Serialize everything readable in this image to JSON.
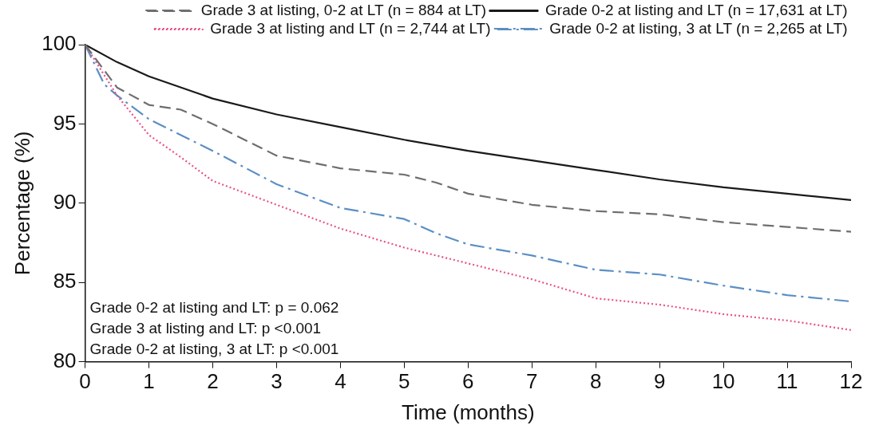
{
  "chart_data": {
    "type": "line",
    "xlabel": "Time (months)",
    "ylabel": "Percentage (%)",
    "xlim": [
      0,
      12
    ],
    "xticks": [
      0,
      1,
      2,
      3,
      4,
      5,
      6,
      7,
      8,
      9,
      10,
      11,
      12
    ],
    "ylim": [
      80,
      100
    ],
    "yticks": [
      80,
      85,
      90,
      95,
      100
    ],
    "grid": false,
    "legend": "top right",
    "marker": "none",
    "annotations": [
      "Grade 0-2 at listing and LT: p = 0.062",
      "Grade 3 at listing and LT: p <0.001",
      "Grade 0-2 at listing, 3 at LT: p <0.001"
    ],
    "series": [
      {
        "name": "Grade 3 at listing, 0-2 at LT (n = 884 at LT)",
        "color": "#6e6e6e",
        "line_style": "dashed",
        "x": [
          0,
          0.5,
          1,
          1.5,
          2,
          3,
          4,
          5,
          5.5,
          6,
          7,
          8,
          9,
          10,
          11,
          12
        ],
        "values": [
          100,
          97.3,
          96.2,
          95.9,
          95.0,
          93.0,
          92.2,
          91.8,
          91.3,
          90.6,
          89.9,
          89.5,
          89.3,
          88.8,
          88.5,
          88.2
        ]
      },
      {
        "name": "Grade 0-2 at listing and LT (n = 17,631 at LT)",
        "color": "#1a1a1a",
        "line_style": "solid",
        "x": [
          0,
          0.5,
          1,
          2,
          3,
          4,
          5,
          6,
          7,
          8,
          9,
          10,
          11,
          12
        ],
        "values": [
          100,
          98.9,
          98.0,
          96.6,
          95.6,
          94.8,
          94.0,
          93.3,
          92.7,
          92.1,
          91.5,
          91.0,
          90.6,
          90.2
        ]
      },
      {
        "name": "Grade 3 at listing and LT (n = 2,744 at LT)",
        "color": "#e8508a",
        "line_style": "dotted",
        "x": [
          0,
          0.5,
          1,
          1.5,
          2,
          3,
          4,
          5,
          6,
          7,
          8,
          9,
          10,
          11,
          12
        ],
        "values": [
          100,
          96.8,
          94.3,
          92.9,
          91.4,
          89.9,
          88.4,
          87.2,
          86.2,
          85.2,
          84.0,
          83.6,
          83.0,
          82.6,
          82.0
        ]
      },
      {
        "name": "Grade 0-2 at listing, 3 at LT (n = 2,265 at LT)",
        "color": "#5b8fc4",
        "line_style": "dashed-dotted",
        "x": [
          0,
          0.3,
          0.5,
          1,
          2,
          3,
          4,
          5,
          5.5,
          6,
          7,
          8,
          9,
          10,
          11,
          12
        ],
        "values": [
          100,
          97.5,
          96.8,
          95.3,
          93.3,
          91.2,
          89.7,
          89.0,
          88.1,
          87.4,
          86.7,
          85.8,
          85.5,
          84.8,
          84.2,
          83.8
        ]
      }
    ]
  }
}
